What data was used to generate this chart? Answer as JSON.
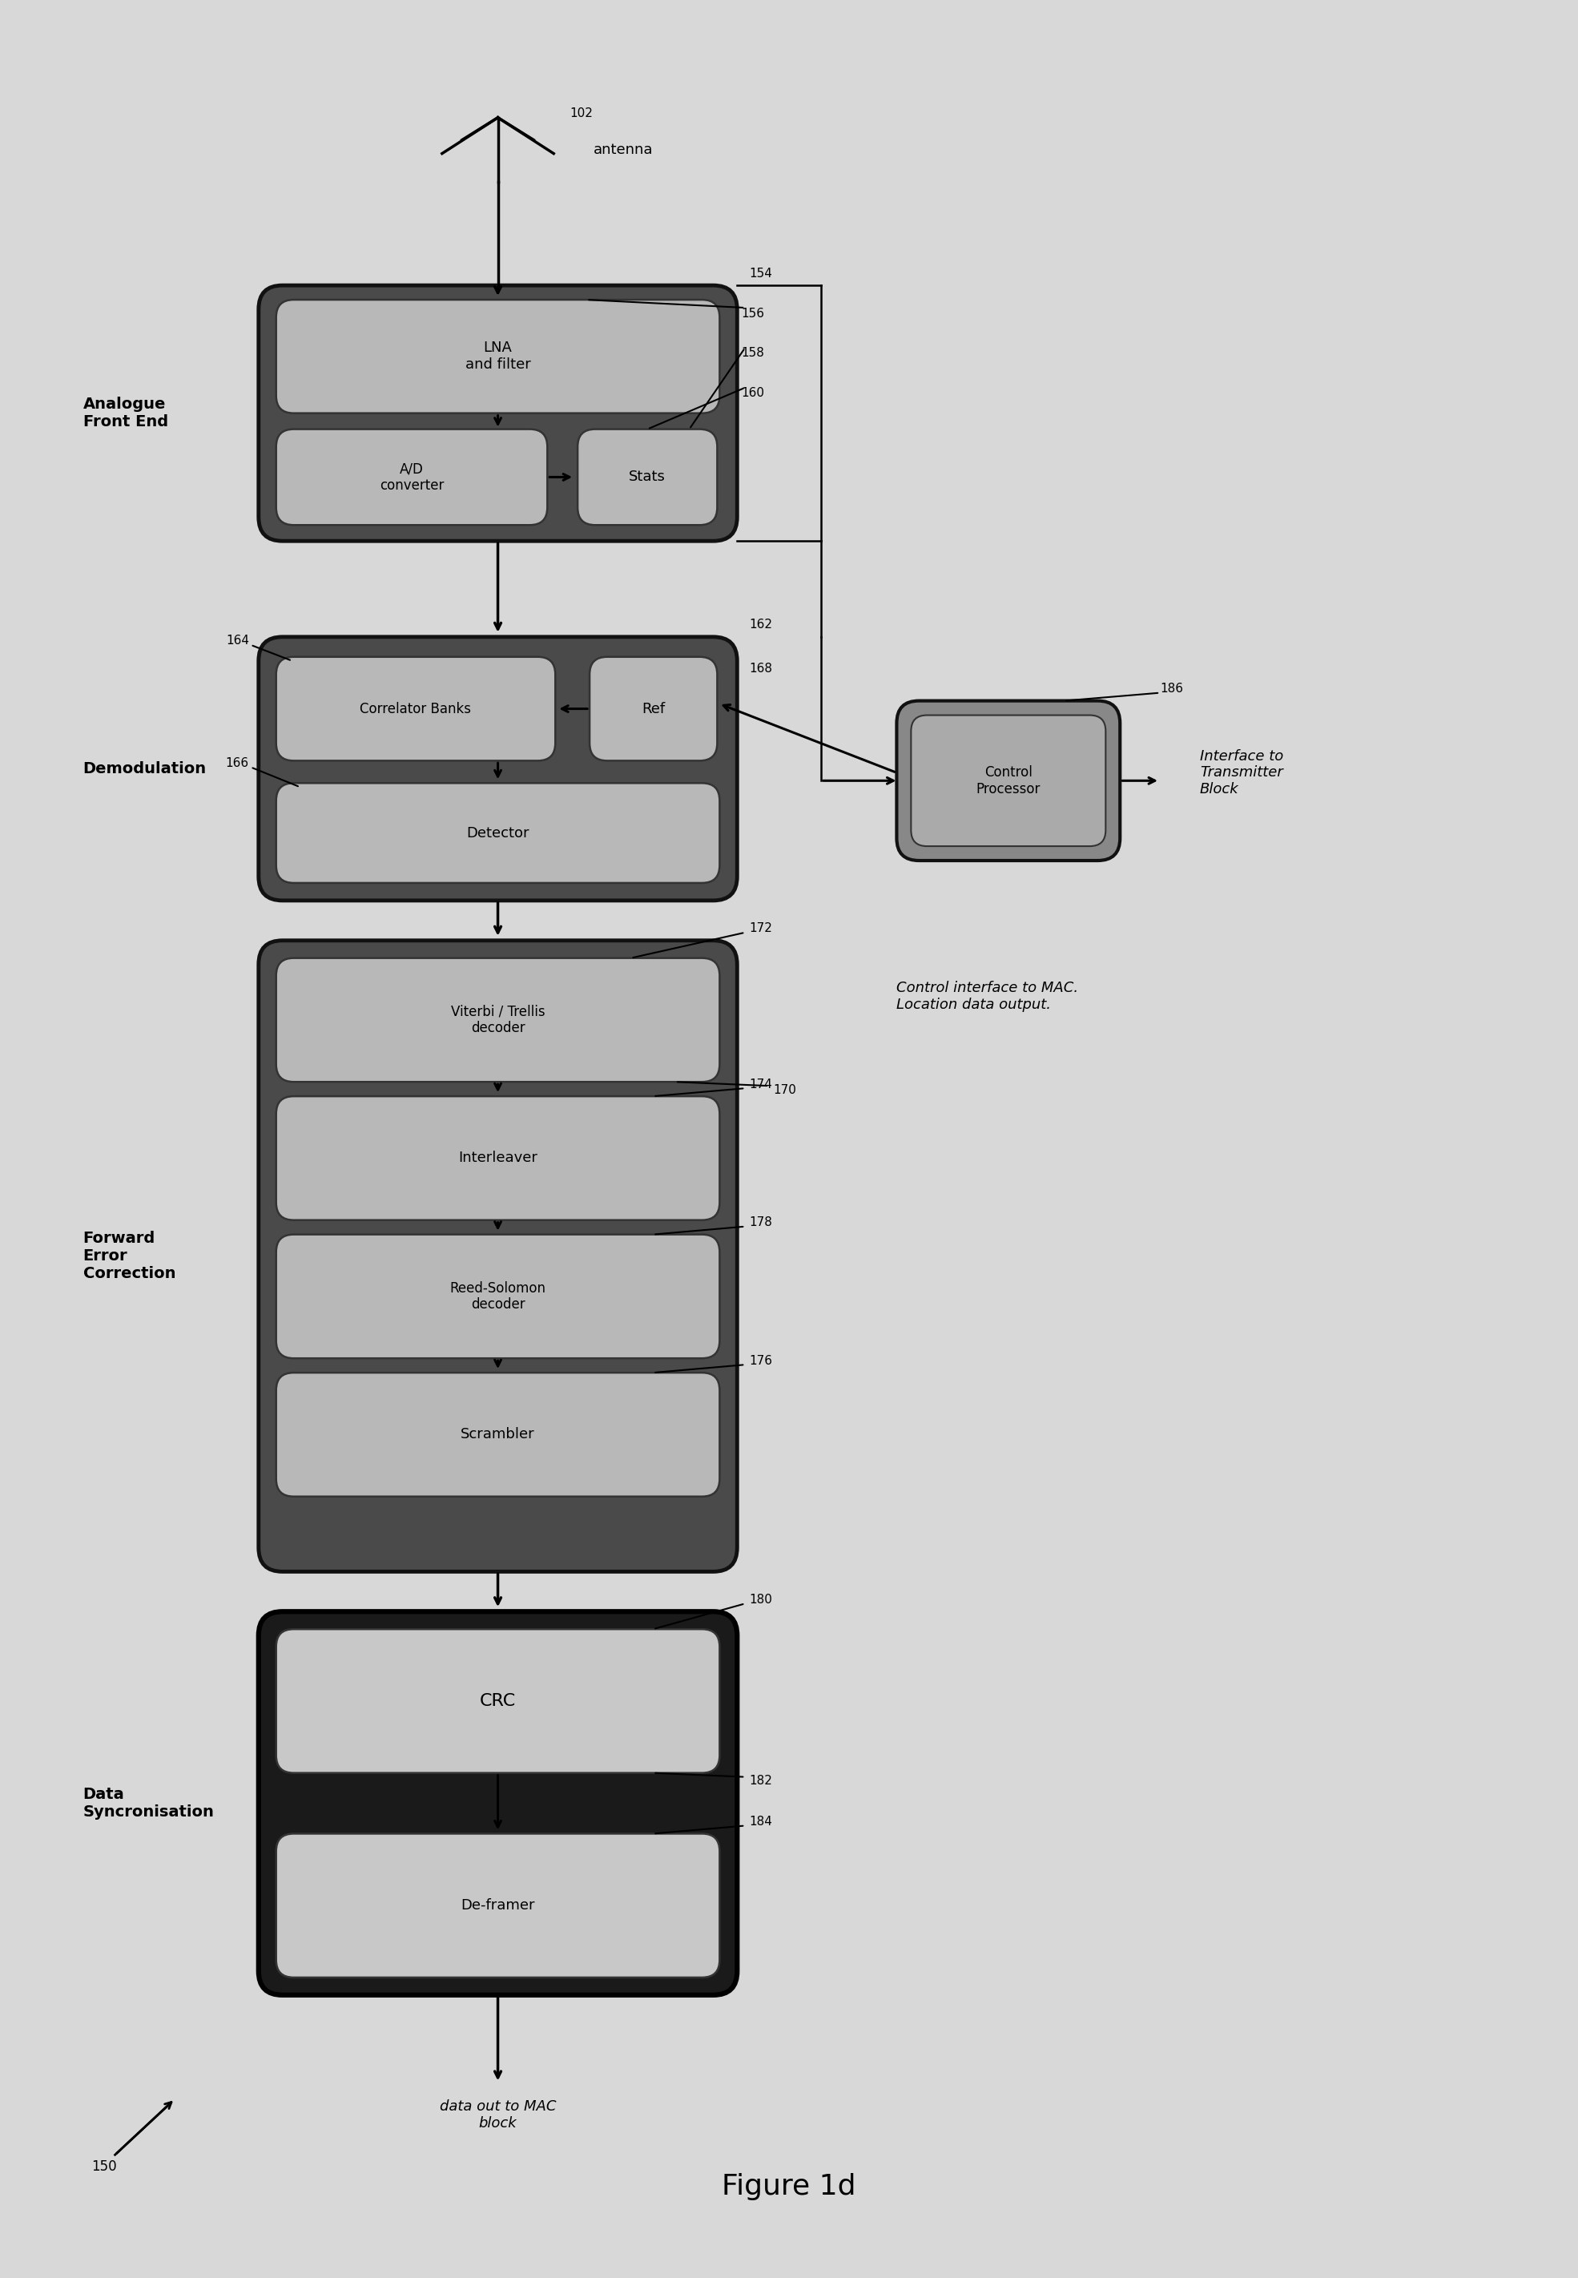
{
  "title": "Figure 1d",
  "fig_label": "150",
  "antenna_label": "antenna",
  "antenna_ref": "102",
  "block_afe_label": "Analogue\nFront End",
  "block_lna_label": "LNA\nand filter",
  "block_adc_label": "A/D\nconverter",
  "block_stats_label": "Stats",
  "block_demod_label": "Demodulation",
  "block_corr_label": "Correlator Banks",
  "block_ref_label": "Ref",
  "block_det_label": "Detector",
  "block_fec_label": "Forward\nError\nCorrection",
  "block_viterbi_label": "Viterbi / Trellis\ndecoder",
  "block_interleaver_label": "Interleaver",
  "block_reed_label": "Reed-Solomon\ndecoder",
  "block_scrambler_label": "Scrambler",
  "block_datasync_label": "Data\nSyncronisation",
  "block_crc_label": "CRC",
  "block_deframer_label": "De-framer",
  "block_ctrl_label": "Control\nProcessor",
  "ctrl_note1": "Interface to\nTransmitter\nBlock",
  "ctrl_note2": "Control interface to MAC.\nLocation data output.",
  "dataout_label": "data out to MAC\nblock",
  "ref_154": "154",
  "ref_156": "156",
  "ref_158": "158",
  "ref_160": "160",
  "ref_162": "162",
  "ref_164": "164",
  "ref_166": "166",
  "ref_168": "168",
  "ref_170": "170",
  "ref_172": "172",
  "ref_174": "174",
  "ref_176": "176",
  "ref_178": "178",
  "ref_180": "180",
  "ref_182": "182",
  "ref_184": "184",
  "ref_186": "186",
  "ref_102": "102"
}
